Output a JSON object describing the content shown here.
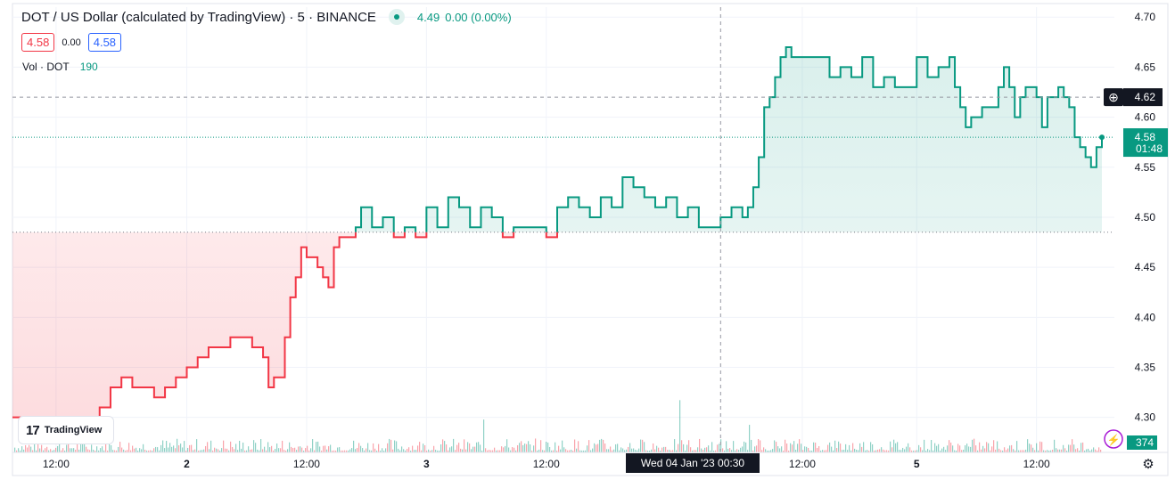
{
  "header": {
    "symbol": "DOT / US Dollar (calculated by TradingView) · 5 · BINANCE",
    "last": "4.49",
    "change": "0.00 (0.00%)"
  },
  "prices": {
    "sell": "4.58",
    "spread": "0.00",
    "buy": "4.58"
  },
  "volume": {
    "label": "Vol · DOT",
    "value": "190"
  },
  "logo": "TradingView",
  "colors": {
    "up": "#089981",
    "down": "#f23645",
    "grid": "#f0f3fa"
  },
  "chart_data": {
    "type": "area",
    "title": "DOT / US Dollar (calculated by TradingView) · 5 · BINANCE",
    "xlabel": "",
    "ylabel": "",
    "ylim": [
      4.265,
      4.71
    ],
    "baseline": 4.485,
    "y_ticks": [
      "4.70",
      "4.65",
      "4.60",
      "4.55",
      "4.50",
      "4.45",
      "4.40",
      "4.35",
      "4.30"
    ],
    "x_ticks": [
      "12:00",
      "2",
      "12:00",
      "3",
      "12:00",
      "12:00",
      "5",
      "12:00"
    ],
    "crosshair": {
      "price_label": "4.62",
      "date_label": "Wed 04 Jan '23   00:30"
    },
    "last_price": {
      "value": "4.58",
      "countdown": "01:48"
    },
    "volume_last": "374",
    "series": [
      {
        "points": [
          [
            0,
            4.3
          ],
          [
            0.01,
            4.29
          ],
          [
            0.02,
            4.29
          ],
          [
            0.03,
            4.28
          ],
          [
            0.04,
            4.29
          ],
          [
            0.05,
            4.3
          ],
          [
            0.06,
            4.29
          ],
          [
            0.07,
            4.3
          ],
          [
            0.08,
            4.31
          ],
          [
            0.09,
            4.33
          ],
          [
            0.1,
            4.34
          ],
          [
            0.11,
            4.33
          ],
          [
            0.12,
            4.33
          ],
          [
            0.13,
            4.32
          ],
          [
            0.14,
            4.33
          ],
          [
            0.15,
            4.34
          ],
          [
            0.16,
            4.35
          ],
          [
            0.17,
            4.36
          ],
          [
            0.18,
            4.37
          ],
          [
            0.19,
            4.37
          ],
          [
            0.2,
            4.38
          ],
          [
            0.21,
            4.38
          ],
          [
            0.22,
            4.37
          ],
          [
            0.23,
            4.36
          ],
          [
            0.235,
            4.33
          ],
          [
            0.24,
            4.34
          ],
          [
            0.25,
            4.38
          ],
          [
            0.255,
            4.42
          ],
          [
            0.26,
            4.44
          ],
          [
            0.265,
            4.47
          ],
          [
            0.27,
            4.46
          ],
          [
            0.28,
            4.45
          ],
          [
            0.285,
            4.44
          ],
          [
            0.29,
            4.43
          ],
          [
            0.295,
            4.47
          ],
          [
            0.3,
            4.48
          ],
          [
            0.31,
            4.48
          ],
          [
            0.315,
            4.49
          ],
          [
            0.32,
            4.51
          ],
          [
            0.33,
            4.49
          ],
          [
            0.34,
            4.5
          ],
          [
            0.35,
            4.48
          ],
          [
            0.36,
            4.49
          ],
          [
            0.37,
            4.48
          ],
          [
            0.38,
            4.51
          ],
          [
            0.39,
            4.49
          ],
          [
            0.4,
            4.52
          ],
          [
            0.41,
            4.51
          ],
          [
            0.42,
            4.49
          ],
          [
            0.43,
            4.51
          ],
          [
            0.44,
            4.5
          ],
          [
            0.45,
            4.48
          ],
          [
            0.46,
            4.49
          ],
          [
            0.47,
            4.49
          ],
          [
            0.48,
            4.49
          ],
          [
            0.49,
            4.48
          ],
          [
            0.5,
            4.51
          ],
          [
            0.51,
            4.52
          ],
          [
            0.52,
            4.51
          ],
          [
            0.53,
            4.5
          ],
          [
            0.54,
            4.52
          ],
          [
            0.55,
            4.51
          ],
          [
            0.56,
            4.54
          ],
          [
            0.57,
            4.53
          ],
          [
            0.58,
            4.52
          ],
          [
            0.59,
            4.51
          ],
          [
            0.6,
            4.52
          ],
          [
            0.61,
            4.5
          ],
          [
            0.62,
            4.51
          ],
          [
            0.63,
            4.49
          ],
          [
            0.64,
            4.49
          ],
          [
            0.65,
            4.5
          ],
          [
            0.66,
            4.51
          ],
          [
            0.67,
            4.5
          ],
          [
            0.675,
            4.51
          ],
          [
            0.68,
            4.53
          ],
          [
            0.685,
            4.56
          ],
          [
            0.69,
            4.61
          ],
          [
            0.695,
            4.62
          ],
          [
            0.7,
            4.64
          ],
          [
            0.705,
            4.66
          ],
          [
            0.71,
            4.67
          ],
          [
            0.715,
            4.66
          ],
          [
            0.72,
            4.66
          ],
          [
            0.73,
            4.66
          ],
          [
            0.74,
            4.66
          ],
          [
            0.75,
            4.64
          ],
          [
            0.76,
            4.65
          ],
          [
            0.77,
            4.64
          ],
          [
            0.78,
            4.66
          ],
          [
            0.79,
            4.63
          ],
          [
            0.8,
            4.64
          ],
          [
            0.81,
            4.63
          ],
          [
            0.82,
            4.63
          ],
          [
            0.83,
            4.66
          ],
          [
            0.84,
            4.64
          ],
          [
            0.85,
            4.65
          ],
          [
            0.86,
            4.66
          ],
          [
            0.865,
            4.63
          ],
          [
            0.87,
            4.61
          ],
          [
            0.875,
            4.59
          ],
          [
            0.88,
            4.6
          ],
          [
            0.89,
            4.61
          ],
          [
            0.9,
            4.61
          ],
          [
            0.905,
            4.63
          ],
          [
            0.91,
            4.65
          ],
          [
            0.915,
            4.63
          ],
          [
            0.92,
            4.6
          ],
          [
            0.925,
            4.62
          ],
          [
            0.93,
            4.63
          ],
          [
            0.94,
            4.62
          ],
          [
            0.945,
            4.59
          ],
          [
            0.95,
            4.62
          ],
          [
            0.96,
            4.63
          ],
          [
            0.965,
            4.62
          ],
          [
            0.97,
            4.61
          ],
          [
            0.975,
            4.58
          ],
          [
            0.98,
            4.57
          ],
          [
            0.985,
            4.56
          ],
          [
            0.99,
            4.55
          ],
          [
            0.995,
            4.57
          ],
          [
            1,
            4.58
          ]
        ]
      }
    ]
  }
}
